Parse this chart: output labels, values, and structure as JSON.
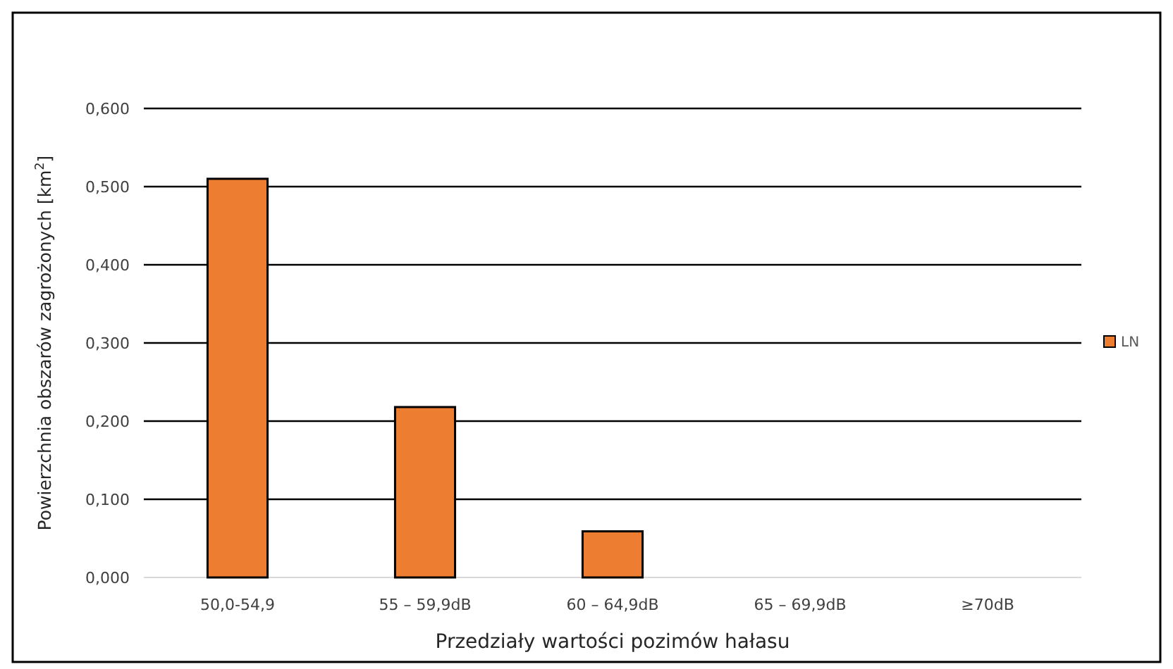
{
  "chart_data": {
    "type": "bar",
    "xlabel": "Przedziały wartości pozimów hałasu",
    "ylabel": "Powierzchnia obszarów zagrożonych [km$^{2}$]",
    "categories": [
      "50,0-54,9",
      "55 – 59,9dB",
      "60 – 64,9dB",
      "65 – 69,9dB",
      "≥70dB"
    ],
    "series": [
      {
        "name": "LN",
        "color": "#ed7d31",
        "values": [
          0.51,
          0.218,
          0.059,
          0,
          0
        ]
      }
    ],
    "ylim": [
      0,
      0.6
    ],
    "yticks": [
      {
        "value": 0,
        "label": "0,000"
      },
      {
        "value": 0.1,
        "label": "0,100"
      },
      {
        "value": 0.2,
        "label": "0,200"
      },
      {
        "value": 0.3,
        "label": "0,300"
      },
      {
        "value": 0.4,
        "label": "0,400"
      },
      {
        "value": 0.5,
        "label": "0,500"
      },
      {
        "value": 0.6,
        "label": "0,600"
      }
    ],
    "grid": "y",
    "legend": "right"
  }
}
